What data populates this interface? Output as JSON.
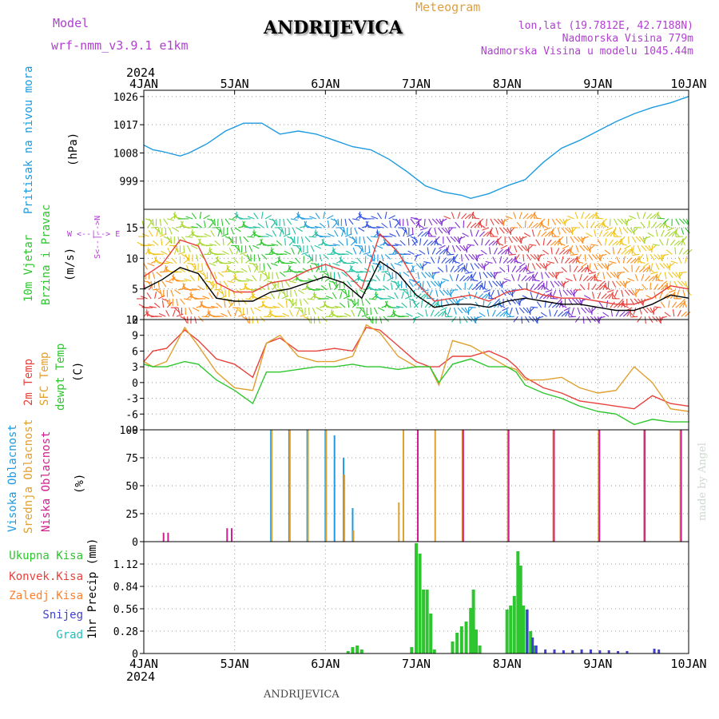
{
  "header": {
    "meteogram_label": "Meteogram",
    "station": "ANDRIJEVICA",
    "model_label": "Model",
    "model_name": "wrf-nmm_v3.9.1 e1km",
    "lonlat": "lon,lat (19.7812E, 42.7188N)",
    "elevation": "Nadmorska Visina 779m",
    "model_elevation": "Nadmorska Visina u modelu 1045.44m",
    "year_top": "2024",
    "year_bottom": "2024",
    "footer_station": "ANDRIJEVICA",
    "credit": "made by Angel"
  },
  "colors": {
    "pressure": "#1e9be0",
    "temp2m": "#e8413c",
    "sfc_temp": "#e0a030",
    "dewpoint": "#2ec62e",
    "high_cloud": "#1e9be0",
    "mid_cloud": "#e0a030",
    "low_cloud": "#d02090",
    "total_precip": "#2ec62e",
    "conv_precip": "#e8413c",
    "frozen_precip": "#ff7f2a",
    "snow": "#4040d0",
    "hail": "#20c0c0",
    "label_purple": "#b040d0",
    "meteogram_orange": "#e0a040"
  },
  "chart_data": {
    "type": "line",
    "x_ticks": [
      "4JAN",
      "5JAN",
      "6JAN",
      "7JAN",
      "8JAN",
      "9JAN",
      "10JAN"
    ],
    "panels": [
      {
        "id": "pressure",
        "ylabel_main": "Pritisak na nivou mora",
        "ylabel_unit": "(hPa)",
        "ylim": [
          990,
          1028
        ],
        "yticks": [
          999,
          1008,
          1017,
          1026
        ],
        "grid": true,
        "series": [
          {
            "color": "#1e9be0",
            "x": [
              0,
              0.1,
              0.2,
              0.4,
              0.5,
              0.7,
              0.9,
              1.1,
              1.3,
              1.5,
              1.7,
              1.9,
              2.1,
              2.3,
              2.5,
              2.7,
              2.9,
              3.1,
              3.3,
              3.5,
              3.6,
              3.8,
              4.0,
              4.2,
              4.4,
              4.6,
              4.8,
              5.0,
              5.2,
              5.4,
              5.6,
              5.8,
              6.0
            ],
            "y": [
              1010.5,
              1009,
              1008.5,
              1007,
              1008,
              1011,
              1015,
              1017.5,
              1017.5,
              1014,
              1015,
              1014,
              1012,
              1010,
              1009,
              1006,
              1002,
              997.5,
              995.5,
              994.5,
              993.5,
              995,
              997.5,
              999.5,
              1005,
              1009.5,
              1012,
              1015,
              1018,
              1020.5,
              1022.5,
              1024,
              1026
            ]
          }
        ]
      },
      {
        "id": "wind",
        "ylabel_main": "10m Vjetar",
        "ylabel_second": "Brzina i Pravac",
        "ylabel_unit": "(m/s)",
        "compass": "W <--|--> E",
        "compass_vertical": "S<--|-->N",
        "ylim": [
          0,
          18
        ],
        "yticks": [
          0,
          5,
          10,
          15
        ],
        "grid": true,
        "series": [
          {
            "name": "wind speed",
            "color": "#000000",
            "x": [
              0,
              0.2,
              0.4,
              0.6,
              0.8,
              1.0,
              1.2,
              1.4,
              1.6,
              1.8,
              2.0,
              2.2,
              2.4,
              2.6,
              2.8,
              3.0,
              3.2,
              3.4,
              3.6,
              3.8,
              4.0,
              4.2,
              4.4,
              4.6,
              4.8,
              5.0,
              5.2,
              5.4,
              5.6,
              5.8,
              6.0
            ],
            "y": [
              5,
              6.5,
              8.5,
              7.5,
              3.5,
              3,
              3,
              4.5,
              5,
              6,
              7,
              6,
              3.5,
              9.5,
              7.5,
              4,
              2,
              2.5,
              2.5,
              2,
              3,
              3.5,
              3,
              2.5,
              2.5,
              2,
              1.5,
              1.5,
              2.5,
              4,
              3.5
            ]
          },
          {
            "name": "gust",
            "color": "#e8413c",
            "x": [
              0,
              0.2,
              0.4,
              0.6,
              0.8,
              1.0,
              1.2,
              1.4,
              1.6,
              1.8,
              2.0,
              2.2,
              2.4,
              2.6,
              2.8,
              3.0,
              3.2,
              3.4,
              3.6,
              3.8,
              4.0,
              4.2,
              4.4,
              4.6,
              4.8,
              5.0,
              5.2,
              5.4,
              5.6,
              5.8,
              6.0
            ],
            "y": [
              7,
              9,
              13,
              12,
              6,
              4.5,
              4.5,
              6,
              6.5,
              8,
              9,
              8,
              5,
              14,
              11,
              6,
              3,
              3.5,
              4,
              3,
              4.5,
              5,
              4,
              3.5,
              3.5,
              3,
              2.5,
              2.5,
              3.5,
              5.5,
              5
            ]
          }
        ]
      },
      {
        "id": "temperature",
        "ylabel_main": "2m Temp",
        "ylabel_second": "SFC Temp",
        "ylabel_third": "dewpt Temp",
        "ylabel_unit": "(C)",
        "ylim": [
          -9,
          12
        ],
        "yticks": [
          -9,
          -6,
          -3,
          0,
          3,
          6,
          9,
          12
        ],
        "grid": true,
        "series": [
          {
            "name": "2m Temp",
            "color": "#e8413c",
            "x": [
              0,
              0.1,
              0.25,
              0.45,
              0.6,
              0.8,
              1.0,
              1.2,
              1.35,
              1.5,
              1.7,
              1.9,
              2.1,
              2.3,
              2.45,
              2.6,
              2.8,
              3.0,
              3.15,
              3.25,
              3.4,
              3.6,
              3.8,
              4.0,
              4.1,
              4.2,
              4.4,
              4.6,
              4.8,
              5.0,
              5.2,
              5.4,
              5.6,
              5.8,
              6.0
            ],
            "y": [
              4,
              6,
              6.5,
              10,
              8,
              4.5,
              3.5,
              1,
              7.5,
              8.5,
              6,
              6,
              6.5,
              6,
              10.5,
              10,
              7,
              4,
              3,
              3,
              5,
              5,
              6,
              4.5,
              3,
              1,
              -1,
              -2,
              -3.5,
              -4,
              -4.5,
              -5,
              -2.5,
              -4,
              -4.5
            ]
          },
          {
            "name": "SFC Temp",
            "color": "#e0a030",
            "x": [
              0,
              0.1,
              0.25,
              0.45,
              0.6,
              0.8,
              1.0,
              1.2,
              1.35,
              1.5,
              1.7,
              1.9,
              2.1,
              2.3,
              2.45,
              2.6,
              2.8,
              3.0,
              3.15,
              3.25,
              3.4,
              3.6,
              3.8,
              4.0,
              4.1,
              4.2,
              4.4,
              4.6,
              4.8,
              5.0,
              5.2,
              5.4,
              5.6,
              5.8,
              6.0
            ],
            "y": [
              4,
              3,
              4,
              10.5,
              7,
              2,
              -1,
              -1.5,
              7.5,
              9,
              5,
              4,
              4,
              5,
              11,
              9.5,
              5,
              3,
              3,
              -0.5,
              8,
              7,
              5,
              3,
              2.5,
              0.5,
              0.5,
              1,
              -1,
              -2,
              -1.5,
              3,
              0,
              -5,
              -5.5
            ]
          },
          {
            "name": "dewpt Temp",
            "color": "#2ec62e",
            "x": [
              0,
              0.1,
              0.25,
              0.45,
              0.6,
              0.8,
              1.0,
              1.2,
              1.35,
              1.5,
              1.7,
              1.9,
              2.1,
              2.3,
              2.45,
              2.6,
              2.8,
              3.0,
              3.15,
              3.25,
              3.4,
              3.6,
              3.8,
              4.0,
              4.1,
              4.2,
              4.4,
              4.6,
              4.8,
              5.0,
              5.2,
              5.4,
              5.6,
              5.8,
              6.0
            ],
            "y": [
              3.5,
              3,
              3,
              4,
              3.5,
              0.5,
              -1.5,
              -4,
              2,
              2,
              2.5,
              3,
              3,
              3.5,
              3,
              3,
              2.5,
              3,
              3,
              0,
              3.5,
              4.5,
              3,
              3,
              2,
              -0.5,
              -2,
              -3,
              -4.5,
              -5.5,
              -6,
              -8,
              -7,
              -7.5,
              -7.5
            ]
          }
        ]
      },
      {
        "id": "clouds",
        "ylabel_main": "Visoka Oblacnost",
        "ylabel_second": "Srednja Oblacnost",
        "ylabel_third": "Niska Oblacnost",
        "ylabel_unit": "(%)",
        "ylim": [
          0,
          100
        ],
        "yticks": [
          0,
          25,
          50,
          75,
          100
        ],
        "grid": true,
        "series": [
          {
            "name": "Visoka Oblacnost",
            "color": "#1e9be0",
            "x": [
              1.4,
              1.6,
              1.8,
              2.0,
              2.1,
              2.2,
              2.3,
              2.8,
              3.5,
              4.5,
              5.5
            ],
            "y": [
              100,
              100,
              100,
              100,
              95,
              75,
              30,
              0,
              0,
              0,
              0
            ]
          },
          {
            "name": "Srednja Oblacnost",
            "color": "#e0a030",
            "x": [
              1.4,
              1.6,
              1.8,
              2.0,
              2.2,
              2.3,
              2.8,
              2.85,
              3.2,
              3.5,
              4.0,
              4.5,
              5.0,
              5.5,
              5.9
            ],
            "y": [
              100,
              100,
              100,
              100,
              60,
              10,
              35,
              100,
              100,
              100,
              100,
              100,
              100,
              100,
              100
            ]
          },
          {
            "name": "Niska Oblacnost",
            "color": "#d02090",
            "x": [
              0.2,
              0.25,
              0.9,
              0.95,
              3.0,
              3.5,
              4.0,
              4.5,
              5.0,
              5.5,
              5.9
            ],
            "y": [
              8,
              8,
              12,
              12,
              100,
              100,
              100,
              100,
              100,
              100,
              100
            ]
          }
        ]
      },
      {
        "id": "precip",
        "type": "bar",
        "ylabel_main": "1hr Precip (mm)",
        "legend": [
          "Ukupna Kisa",
          "Konvek.Kisa",
          "Zaledj.Kisa",
          "Snijeg",
          "Grad"
        ],
        "ylim": [
          0,
          1.4
        ],
        "yticks": [
          0,
          0.28,
          0.56,
          0.84,
          1.12
        ],
        "grid": true,
        "total_precip": {
          "x": [
            2.25,
            2.3,
            2.35,
            2.4,
            2.95,
            3.0,
            3.04,
            3.08,
            3.12,
            3.16,
            3.2,
            3.4,
            3.45,
            3.5,
            3.55,
            3.6,
            3.63,
            3.66,
            3.7,
            4.0,
            4.04,
            4.08,
            4.12,
            4.15,
            4.18,
            4.22,
            4.26,
            4.3
          ],
          "y": [
            0.03,
            0.08,
            0.1,
            0.05,
            0.08,
            1.38,
            1.25,
            0.8,
            0.8,
            0.5,
            0.05,
            0.15,
            0.26,
            0.34,
            0.4,
            0.57,
            0.8,
            0.3,
            0.1,
            0.55,
            0.6,
            0.72,
            1.28,
            1.1,
            0.6,
            0.55,
            0.28,
            0.1
          ]
        },
        "snow": {
          "x": [
            4.2,
            4.26,
            4.3,
            4.4,
            4.5,
            4.6,
            4.7,
            4.8,
            4.9,
            5.0,
            5.1,
            5.2,
            5.3,
            5.6,
            5.65
          ],
          "y": [
            0.55,
            0.2,
            0.1,
            0.05,
            0.05,
            0.04,
            0.04,
            0.05,
            0.05,
            0.04,
            0.04,
            0.03,
            0.03,
            0.06,
            0.05
          ]
        }
      }
    ]
  }
}
